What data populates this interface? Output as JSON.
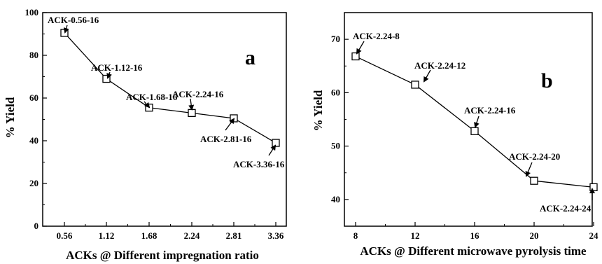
{
  "chart_data": [
    {
      "type": "line",
      "panel_label": "a",
      "xlabel": "ACKs @ Different impregnation ratio",
      "ylabel": "% Yield",
      "categories": [
        "0.56",
        "1.12",
        "1.68",
        "2.24",
        "2.81",
        "3.36"
      ],
      "ylim": [
        0,
        100
      ],
      "yticks": [
        "0",
        "20",
        "40",
        "60",
        "80",
        "100"
      ],
      "series": [
        {
          "values": [
            90.5,
            69,
            55.5,
            53,
            50.5,
            39
          ],
          "labels": [
            "ACK-0.56-16",
            "ACK-1.12-16",
            "ACK-1.68-16",
            "ACK-2.24-16",
            "ACK-2.81-16",
            "ACK-3.36-16"
          ]
        }
      ],
      "grid": false,
      "marker": "open-square"
    },
    {
      "type": "line",
      "panel_label": "b",
      "xlabel": "ACKs @ Different microwave pyrolysis time",
      "ylabel": "% Yield",
      "categories": [
        "8",
        "12",
        "16",
        "20",
        "24"
      ],
      "ylim": [
        35,
        75
      ],
      "yticks": [
        "40",
        "50",
        "60",
        "70"
      ],
      "series": [
        {
          "values": [
            66.8,
            61.5,
            52.8,
            43.5,
            42.3
          ],
          "labels": [
            "ACK-2.24-8",
            "ACK-2.24-12",
            "ACK-2.24-16",
            "ACK-2.24-20",
            "ACK-2.24-24"
          ]
        }
      ],
      "grid": false,
      "marker": "open-square"
    }
  ]
}
